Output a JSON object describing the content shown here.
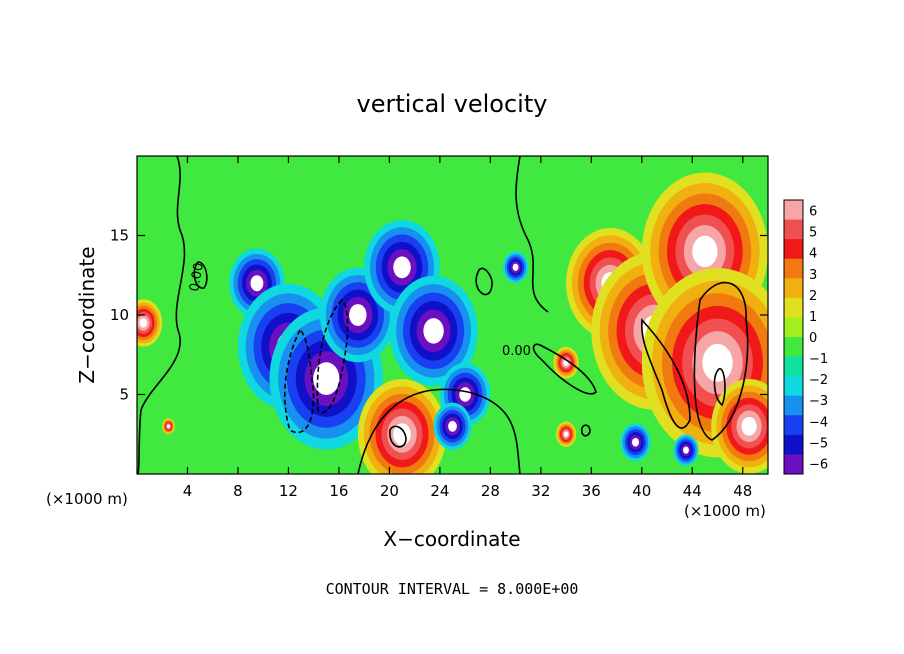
{
  "chart_data": {
    "type": "heatmap",
    "title": "vertical velocity",
    "xlabel": "X−coordinate",
    "ylabel": "Z−coordinate",
    "x_unit_label": "(×1000 m)",
    "x_unit_label_right": "(×1000 m)",
    "xlim": [
      0,
      50
    ],
    "ylim": [
      0,
      20
    ],
    "x_ticks": [
      "4",
      "8",
      "12",
      "16",
      "20",
      "24",
      "28",
      "32",
      "36",
      "40",
      "44",
      "48"
    ],
    "y_ticks": [
      "5",
      "10",
      "15"
    ],
    "colorbar": {
      "min": -6,
      "max": 6,
      "ticks": [
        "6",
        "5",
        "4",
        "3",
        "2",
        "1",
        "0",
        "−1",
        "−2",
        "−3",
        "−4",
        "−5",
        "−6"
      ],
      "colors": [
        "#f6a6a6",
        "#f05050",
        "#f01818",
        "#f07a10",
        "#f0b010",
        "#e0e020",
        "#a0f020",
        "#40e840",
        "#10e0a0",
        "#10d8e0",
        "#1890f0",
        "#1840f0",
        "#1010c8",
        "#6a10c0"
      ]
    },
    "contour_labels": [
      "0.00",
      "0.00"
    ],
    "footer": "CONTOUR INTERVAL = 8.000E+00",
    "features": [
      {
        "x": 0.5,
        "z": 9.5,
        "w": 1.5,
        "sign": 1
      },
      {
        "x": 2.5,
        "z": 3.0,
        "w": 0.5,
        "sign": 1
      },
      {
        "x": 9.5,
        "z": 12.0,
        "w": 2.2,
        "sign": -1
      },
      {
        "x": 12.0,
        "z": 8.0,
        "w": 4.0,
        "sign": -1
      },
      {
        "x": 15.0,
        "z": 6.0,
        "w": 4.5,
        "sign": -1
      },
      {
        "x": 17.5,
        "z": 10.0,
        "w": 3.0,
        "sign": -1
      },
      {
        "x": 21.0,
        "z": 13.0,
        "w": 3.0,
        "sign": -1
      },
      {
        "x": 23.5,
        "z": 9.0,
        "w": 3.5,
        "sign": -1
      },
      {
        "x": 26.0,
        "z": 5.0,
        "w": 2.0,
        "sign": -1
      },
      {
        "x": 21.0,
        "z": 2.5,
        "w": 3.5,
        "sign": 1
      },
      {
        "x": 25.0,
        "z": 3.0,
        "w": 1.5,
        "sign": -1
      },
      {
        "x": 30.0,
        "z": 13.0,
        "w": 1.0,
        "sign": -1
      },
      {
        "x": 34.0,
        "z": 7.0,
        "w": 1.0,
        "sign": 1
      },
      {
        "x": 34.0,
        "z": 2.5,
        "w": 0.8,
        "sign": 1
      },
      {
        "x": 39.5,
        "z": 2.0,
        "w": 1.2,
        "sign": -1
      },
      {
        "x": 37.5,
        "z": 12.0,
        "w": 3.5,
        "sign": 1
      },
      {
        "x": 41.0,
        "z": 9.0,
        "w": 5.0,
        "sign": 1
      },
      {
        "x": 45.0,
        "z": 14.0,
        "w": 5.0,
        "sign": 1
      },
      {
        "x": 46.0,
        "z": 7.0,
        "w": 6.0,
        "sign": 1
      },
      {
        "x": 48.5,
        "z": 3.0,
        "w": 3.0,
        "sign": 1
      },
      {
        "x": 43.5,
        "z": 1.5,
        "w": 1.0,
        "sign": -1
      }
    ]
  }
}
